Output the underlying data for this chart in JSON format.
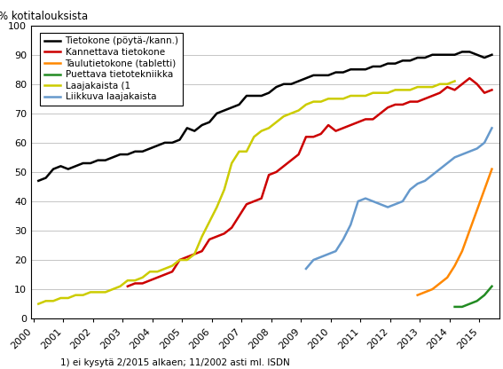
{
  "ylabel": "% kotitalouksista",
  "footnote": "1) ei kysytä 2/2015 alkaen; 11/2002 asti ml. ISDN",
  "ylim": [
    0,
    100
  ],
  "colors": {
    "tietokone": "#000000",
    "kannettava": "#cc0000",
    "tabletti": "#ff8800",
    "puettava": "#228B22",
    "laajakaista": "#cccc00",
    "liikkuva": "#6699cc"
  },
  "legend_entries": [
    "Tietokone (pöytä-/kann.)",
    "Kannettava tietokone",
    "Taulutietokone (tabletti)",
    "Puettava tietotekniikka",
    "Laajakaista (1",
    "Liikkuva laajakaista"
  ],
  "tietokone": {
    "x": [
      2000.17,
      2000.42,
      2000.67,
      2000.92,
      2001.17,
      2001.42,
      2001.67,
      2001.92,
      2002.17,
      2002.42,
      2002.67,
      2002.92,
      2003.17,
      2003.42,
      2003.67,
      2003.92,
      2004.17,
      2004.42,
      2004.67,
      2004.92,
      2005.17,
      2005.42,
      2005.67,
      2005.92,
      2006.17,
      2006.42,
      2006.67,
      2006.92,
      2007.17,
      2007.42,
      2007.67,
      2007.92,
      2008.17,
      2008.42,
      2008.67,
      2008.92,
      2009.17,
      2009.42,
      2009.67,
      2009.92,
      2010.17,
      2010.42,
      2010.67,
      2010.92,
      2011.17,
      2011.42,
      2011.67,
      2011.92,
      2012.17,
      2012.42,
      2012.67,
      2012.92,
      2013.17,
      2013.42,
      2013.67,
      2013.92,
      2014.17,
      2014.42,
      2014.67,
      2014.92,
      2015.17,
      2015.42
    ],
    "y": [
      47,
      48,
      51,
      52,
      51,
      52,
      53,
      53,
      54,
      54,
      55,
      56,
      56,
      57,
      57,
      58,
      59,
      60,
      60,
      61,
      65,
      64,
      66,
      67,
      70,
      71,
      72,
      73,
      76,
      76,
      76,
      77,
      79,
      80,
      80,
      81,
      82,
      83,
      83,
      83,
      84,
      84,
      85,
      85,
      85,
      86,
      86,
      87,
      87,
      88,
      88,
      89,
      89,
      90,
      90,
      90,
      90,
      91,
      91,
      90,
      89,
      90
    ]
  },
  "kannettava": {
    "x": [
      2003.17,
      2003.42,
      2003.67,
      2003.92,
      2004.17,
      2004.42,
      2004.67,
      2004.92,
      2005.17,
      2005.42,
      2005.67,
      2005.92,
      2006.17,
      2006.42,
      2006.67,
      2006.92,
      2007.17,
      2007.42,
      2007.67,
      2007.92,
      2008.17,
      2008.42,
      2008.67,
      2008.92,
      2009.17,
      2009.42,
      2009.67,
      2009.92,
      2010.17,
      2010.42,
      2010.67,
      2010.92,
      2011.17,
      2011.42,
      2011.67,
      2011.92,
      2012.17,
      2012.42,
      2012.67,
      2012.92,
      2013.17,
      2013.42,
      2013.67,
      2013.92,
      2014.17,
      2014.42,
      2014.67,
      2014.92,
      2015.17,
      2015.42
    ],
    "y": [
      11,
      12,
      12,
      13,
      14,
      15,
      16,
      20,
      21,
      22,
      23,
      27,
      28,
      29,
      31,
      35,
      39,
      40,
      41,
      49,
      50,
      52,
      54,
      56,
      62,
      62,
      63,
      66,
      64,
      65,
      66,
      67,
      68,
      68,
      70,
      72,
      73,
      73,
      74,
      74,
      75,
      76,
      77,
      79,
      78,
      80,
      82,
      80,
      77,
      78
    ]
  },
  "tabletti": {
    "x": [
      2012.92,
      2013.17,
      2013.42,
      2013.67,
      2013.92,
      2014.17,
      2014.42,
      2014.67,
      2014.92,
      2015.17,
      2015.42
    ],
    "y": [
      8,
      9,
      10,
      12,
      14,
      18,
      23,
      30,
      37,
      44,
      51
    ]
  },
  "puettava": {
    "x": [
      2014.17,
      2014.42,
      2014.67,
      2014.92,
      2015.17,
      2015.42
    ],
    "y": [
      4,
      4,
      5,
      6,
      8,
      11
    ]
  },
  "laajakaista": {
    "x": [
      2000.17,
      2000.42,
      2000.67,
      2000.92,
      2001.17,
      2001.42,
      2001.67,
      2001.92,
      2002.17,
      2002.42,
      2002.67,
      2002.92,
      2003.17,
      2003.42,
      2003.67,
      2003.92,
      2004.17,
      2004.42,
      2004.67,
      2004.92,
      2005.17,
      2005.42,
      2005.67,
      2005.92,
      2006.17,
      2006.42,
      2006.67,
      2006.92,
      2007.17,
      2007.42,
      2007.67,
      2007.92,
      2008.17,
      2008.42,
      2008.67,
      2008.92,
      2009.17,
      2009.42,
      2009.67,
      2009.92,
      2010.17,
      2010.42,
      2010.67,
      2010.92,
      2011.17,
      2011.42,
      2011.67,
      2011.92,
      2012.17,
      2012.42,
      2012.67,
      2012.92,
      2013.17,
      2013.42,
      2013.67,
      2013.92,
      2014.17
    ],
    "y": [
      5,
      6,
      6,
      7,
      7,
      8,
      8,
      9,
      9,
      9,
      10,
      11,
      13,
      13,
      14,
      16,
      16,
      17,
      18,
      20,
      20,
      22,
      28,
      33,
      38,
      44,
      53,
      57,
      57,
      62,
      64,
      65,
      67,
      69,
      70,
      71,
      73,
      74,
      74,
      75,
      75,
      75,
      76,
      76,
      76,
      77,
      77,
      77,
      78,
      78,
      78,
      79,
      79,
      79,
      80,
      80,
      81
    ]
  },
  "liikkuva": {
    "x": [
      2009.17,
      2009.42,
      2009.67,
      2009.92,
      2010.17,
      2010.42,
      2010.67,
      2010.92,
      2011.17,
      2011.42,
      2011.67,
      2011.92,
      2012.17,
      2012.42,
      2012.67,
      2012.92,
      2013.17,
      2013.42,
      2013.67,
      2013.92,
      2014.17,
      2014.42,
      2014.67,
      2014.92,
      2015.17,
      2015.42
    ],
    "y": [
      17,
      20,
      21,
      22,
      23,
      27,
      32,
      40,
      41,
      40,
      39,
      38,
      39,
      40,
      44,
      46,
      47,
      49,
      51,
      53,
      55,
      56,
      57,
      58,
      60,
      65
    ]
  }
}
